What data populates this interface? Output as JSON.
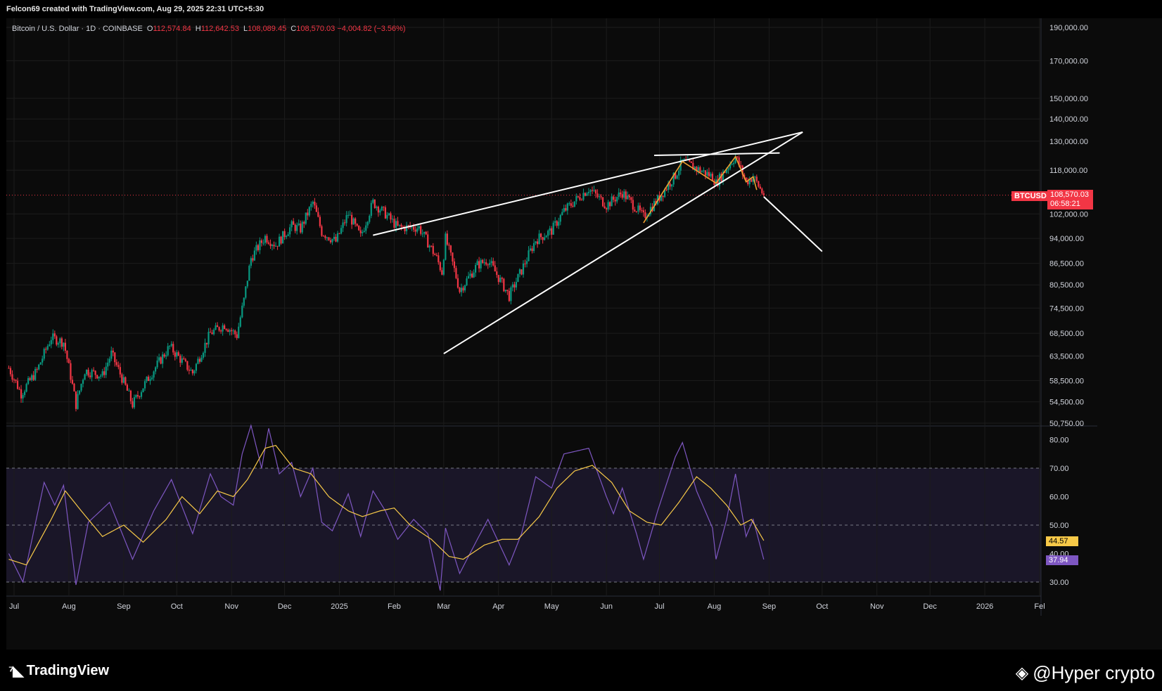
{
  "header": {
    "credit": "Felcon69 created with TradingView.com, Aug 29, 2025 22:31 UTC+5:30"
  },
  "legend": {
    "symbol": "Bitcoin / U.S. Dollar · 1D · COINBASE",
    "o_label": "O",
    "o_value": "112,574.84",
    "h_label": "H",
    "h_value": "112,642.53",
    "l_label": "L",
    "l_value": "108,089.45",
    "c_label": "C",
    "c_value": "108,570.03",
    "change": "−4,004.82 (−3.56%)"
  },
  "price_marker": {
    "ticker": "BTCUSD",
    "price": "108,570.03",
    "countdown": "06:58:21",
    "color": "#f23645"
  },
  "rsi_markers": {
    "ma_value": "44.57",
    "ma_color": "#f7c948",
    "rsi_value": "37.94",
    "rsi_color": "#7e57c2"
  },
  "footer": {
    "brand": "TradingView",
    "watermark": "@Hyper crypto"
  },
  "colors": {
    "up": "#089981",
    "down": "#f23645",
    "trendline": "#ffffff",
    "pattern": "#f0a030",
    "rsi": "#7e57c2",
    "rsi_ma": "#f7c948",
    "rsi_band": "#1a1628"
  },
  "chart_data": [
    {
      "type": "candlestick",
      "title": "Bitcoin / U.S. Dollar · 1D · COINBASE",
      "y_scale": "log",
      "y_ticks": [
        "190,000.00",
        "170,000.00",
        "150,000.00",
        "140,000.00",
        "130,000.00",
        "118,000.00",
        "102,000.00",
        "94,000.00",
        "86,500.00",
        "80,500.00",
        "74,500.00",
        "68,500.00",
        "63,500.00",
        "58,500.00",
        "54,500.00",
        "50,750.00"
      ],
      "y_tick_values": [
        190000,
        170000,
        150000,
        140000,
        130000,
        118000,
        102000,
        94000,
        86500,
        80500,
        74500,
        68500,
        63500,
        58500,
        54500,
        50750
      ],
      "x_ticks": [
        "Jul",
        "Aug",
        "Sep",
        "Oct",
        "Nov",
        "Dec",
        "2025",
        "Feb",
        "Mar",
        "Apr",
        "May",
        "Jun",
        "Jul",
        "Aug",
        "Sep",
        "Oct",
        "Nov",
        "Dec",
        "2026",
        "Fel"
      ],
      "x_tick_dates": [
        "2024-07-01",
        "2024-08-01",
        "2024-09-01",
        "2024-10-01",
        "2024-11-01",
        "2024-12-01",
        "2025-01-01",
        "2025-02-01",
        "2025-03-01",
        "2025-04-01",
        "2025-05-01",
        "2025-06-01",
        "2025-07-01",
        "2025-08-01",
        "2025-09-01",
        "2025-10-01",
        "2025-11-01",
        "2025-12-01",
        "2026-01-01",
        "2026-02-01"
      ],
      "last_close": 108570.03,
      "close_path": [
        {
          "date": "2024-06-28",
          "close": 61000
        },
        {
          "date": "2024-07-05",
          "close": 56000
        },
        {
          "date": "2024-07-14",
          "close": 60500
        },
        {
          "date": "2024-07-22",
          "close": 67500
        },
        {
          "date": "2024-07-29",
          "close": 66500
        },
        {
          "date": "2024-08-05",
          "close": 54000
        },
        {
          "date": "2024-08-10",
          "close": 60500
        },
        {
          "date": "2024-08-20",
          "close": 59500
        },
        {
          "date": "2024-08-25",
          "close": 64000
        },
        {
          "date": "2024-09-06",
          "close": 54000
        },
        {
          "date": "2024-09-15",
          "close": 59000
        },
        {
          "date": "2024-09-27",
          "close": 65500
        },
        {
          "date": "2024-10-05",
          "close": 62000
        },
        {
          "date": "2024-10-10",
          "close": 60000
        },
        {
          "date": "2024-10-20",
          "close": 68500
        },
        {
          "date": "2024-10-28",
          "close": 70500
        },
        {
          "date": "2024-11-04",
          "close": 68000
        },
        {
          "date": "2024-11-08",
          "close": 76500
        },
        {
          "date": "2024-11-12",
          "close": 88000
        },
        {
          "date": "2024-11-20",
          "close": 94500
        },
        {
          "date": "2024-11-26",
          "close": 92000
        },
        {
          "date": "2024-12-05",
          "close": 98000
        },
        {
          "date": "2024-12-10",
          "close": 97000
        },
        {
          "date": "2024-12-17",
          "close": 106000
        },
        {
          "date": "2024-12-22",
          "close": 96000
        },
        {
          "date": "2024-12-30",
          "close": 93000
        },
        {
          "date": "2025-01-06",
          "close": 102000
        },
        {
          "date": "2025-01-13",
          "close": 94500
        },
        {
          "date": "2025-01-20",
          "close": 106000
        },
        {
          "date": "2025-01-27",
          "close": 102000
        },
        {
          "date": "2025-02-03",
          "close": 97500
        },
        {
          "date": "2025-02-15",
          "close": 97500
        },
        {
          "date": "2025-02-25",
          "close": 88000
        },
        {
          "date": "2025-02-28",
          "close": 84000
        },
        {
          "date": "2025-03-02",
          "close": 94000
        },
        {
          "date": "2025-03-10",
          "close": 79000
        },
        {
          "date": "2025-03-20",
          "close": 86000
        },
        {
          "date": "2025-03-26",
          "close": 87500
        },
        {
          "date": "2025-04-07",
          "close": 77500
        },
        {
          "date": "2025-04-14",
          "close": 84500
        },
        {
          "date": "2025-04-22",
          "close": 93500
        },
        {
          "date": "2025-05-01",
          "close": 96500
        },
        {
          "date": "2025-05-08",
          "close": 103000
        },
        {
          "date": "2025-05-22",
          "close": 111000
        },
        {
          "date": "2025-06-01",
          "close": 105000
        },
        {
          "date": "2025-06-10",
          "close": 109500
        },
        {
          "date": "2025-06-22",
          "close": 101000
        },
        {
          "date": "2025-06-30",
          "close": 107000
        },
        {
          "date": "2025-07-10",
          "close": 116000
        },
        {
          "date": "2025-07-14",
          "close": 121500
        },
        {
          "date": "2025-07-31",
          "close": 115500
        },
        {
          "date": "2025-08-02",
          "close": 113000
        },
        {
          "date": "2025-08-13",
          "close": 123500
        },
        {
          "date": "2025-08-19",
          "close": 113500
        },
        {
          "date": "2025-08-23",
          "close": 115500
        },
        {
          "date": "2025-08-29",
          "close": 108570
        }
      ],
      "trendlines": [
        {
          "from": {
            "date": "2025-01-20",
            "price": 95000
          },
          "to": {
            "date": "2025-09-20",
            "price": 134000
          }
        },
        {
          "from": {
            "date": "2025-03-01",
            "price": 64000
          },
          "to": {
            "date": "2025-09-20",
            "price": 134000
          }
        },
        {
          "from": {
            "date": "2025-06-28",
            "price": 124000
          },
          "to": {
            "date": "2025-09-07",
            "price": 125000
          }
        },
        {
          "from": {
            "date": "2025-08-29",
            "price": 108000
          },
          "to": {
            "date": "2025-10-01",
            "price": 90000
          }
        }
      ],
      "pattern_path": [
        {
          "date": "2025-06-22",
          "price": 99000
        },
        {
          "date": "2025-07-14",
          "price": 121500
        },
        {
          "date": "2025-08-02",
          "price": 113000
        },
        {
          "date": "2025-08-13",
          "price": 123500
        },
        {
          "date": "2025-08-19",
          "price": 113500
        },
        {
          "date": "2025-08-23",
          "price": 115500
        },
        {
          "date": "2025-08-25",
          "price": 110500
        }
      ]
    },
    {
      "type": "line",
      "title": "",
      "y_ticks": [
        "80.00",
        "70.00",
        "60.00",
        "50.00",
        "40.00",
        "30.00"
      ],
      "y_tick_values": [
        80,
        70,
        60,
        50,
        40,
        30
      ],
      "bands": [
        70,
        50,
        30
      ],
      "series": [
        {
          "values": [
            {
              "date": "2024-06-28",
              "v": 40
            },
            {
              "date": "2024-07-06",
              "v": 30
            },
            {
              "date": "2024-07-18",
              "v": 65
            },
            {
              "date": "2024-07-24",
              "v": 57
            },
            {
              "date": "2024-07-29",
              "v": 64
            },
            {
              "date": "2024-08-05",
              "v": 29
            },
            {
              "date": "2024-08-12",
              "v": 51
            },
            {
              "date": "2024-08-24",
              "v": 58
            },
            {
              "date": "2024-09-06",
              "v": 38
            },
            {
              "date": "2024-09-18",
              "v": 55
            },
            {
              "date": "2024-09-28",
              "v": 66
            },
            {
              "date": "2024-10-10",
              "v": 47
            },
            {
              "date": "2024-10-20",
              "v": 68
            },
            {
              "date": "2024-10-26",
              "v": 60
            },
            {
              "date": "2024-11-02",
              "v": 57
            },
            {
              "date": "2024-11-07",
              "v": 75
            },
            {
              "date": "2024-11-12",
              "v": 85
            },
            {
              "date": "2024-11-18",
              "v": 70
            },
            {
              "date": "2024-11-22",
              "v": 84
            },
            {
              "date": "2024-11-28",
              "v": 68
            },
            {
              "date": "2024-12-05",
              "v": 72
            },
            {
              "date": "2024-12-10",
              "v": 60
            },
            {
              "date": "2024-12-17",
              "v": 70
            },
            {
              "date": "2024-12-22",
              "v": 51
            },
            {
              "date": "2024-12-28",
              "v": 48
            },
            {
              "date": "2025-01-06",
              "v": 61
            },
            {
              "date": "2025-01-13",
              "v": 46
            },
            {
              "date": "2025-01-20",
              "v": 62
            },
            {
              "date": "2025-01-27",
              "v": 55
            },
            {
              "date": "2025-02-03",
              "v": 45
            },
            {
              "date": "2025-02-12",
              "v": 52
            },
            {
              "date": "2025-02-20",
              "v": 47
            },
            {
              "date": "2025-02-27",
              "v": 27
            },
            {
              "date": "2025-03-02",
              "v": 49
            },
            {
              "date": "2025-03-10",
              "v": 33
            },
            {
              "date": "2025-03-20",
              "v": 45
            },
            {
              "date": "2025-03-26",
              "v": 52
            },
            {
              "date": "2025-04-07",
              "v": 36
            },
            {
              "date": "2025-04-14",
              "v": 47
            },
            {
              "date": "2025-04-22",
              "v": 67
            },
            {
              "date": "2025-05-01",
              "v": 63
            },
            {
              "date": "2025-05-08",
              "v": 75
            },
            {
              "date": "2025-05-22",
              "v": 77
            },
            {
              "date": "2025-06-01",
              "v": 60
            },
            {
              "date": "2025-06-05",
              "v": 54
            },
            {
              "date": "2025-06-10",
              "v": 63
            },
            {
              "date": "2025-06-18",
              "v": 47
            },
            {
              "date": "2025-06-22",
              "v": 38
            },
            {
              "date": "2025-06-30",
              "v": 55
            },
            {
              "date": "2025-07-10",
              "v": 74
            },
            {
              "date": "2025-07-14",
              "v": 79
            },
            {
              "date": "2025-07-22",
              "v": 62
            },
            {
              "date": "2025-07-31",
              "v": 49
            },
            {
              "date": "2025-08-02",
              "v": 38
            },
            {
              "date": "2025-08-08",
              "v": 52
            },
            {
              "date": "2025-08-13",
              "v": 68
            },
            {
              "date": "2025-08-17",
              "v": 53
            },
            {
              "date": "2025-08-19",
              "v": 46
            },
            {
              "date": "2025-08-23",
              "v": 52
            },
            {
              "date": "2025-08-29",
              "v": 37.94
            }
          ]
        },
        {
          "values": [
            {
              "date": "2024-06-28",
              "v": 38
            },
            {
              "date": "2024-07-08",
              "v": 36
            },
            {
              "date": "2024-07-22",
              "v": 52
            },
            {
              "date": "2024-07-30",
              "v": 62
            },
            {
              "date": "2024-08-08",
              "v": 55
            },
            {
              "date": "2024-08-20",
              "v": 46
            },
            {
              "date": "2024-09-01",
              "v": 50
            },
            {
              "date": "2024-09-12",
              "v": 44
            },
            {
              "date": "2024-09-25",
              "v": 52
            },
            {
              "date": "2024-10-04",
              "v": 60
            },
            {
              "date": "2024-10-14",
              "v": 54
            },
            {
              "date": "2024-10-24",
              "v": 62
            },
            {
              "date": "2024-11-02",
              "v": 60
            },
            {
              "date": "2024-11-10",
              "v": 66
            },
            {
              "date": "2024-11-20",
              "v": 77
            },
            {
              "date": "2024-11-26",
              "v": 78
            },
            {
              "date": "2024-12-06",
              "v": 70
            },
            {
              "date": "2024-12-16",
              "v": 68
            },
            {
              "date": "2024-12-26",
              "v": 60
            },
            {
              "date": "2025-01-06",
              "v": 55
            },
            {
              "date": "2025-01-14",
              "v": 53
            },
            {
              "date": "2025-01-24",
              "v": 55
            },
            {
              "date": "2025-02-01",
              "v": 56
            },
            {
              "date": "2025-02-10",
              "v": 50
            },
            {
              "date": "2025-02-22",
              "v": 45
            },
            {
              "date": "2025-03-04",
              "v": 39
            },
            {
              "date": "2025-03-12",
              "v": 38
            },
            {
              "date": "2025-03-24",
              "v": 43
            },
            {
              "date": "2025-04-03",
              "v": 45
            },
            {
              "date": "2025-04-12",
              "v": 45
            },
            {
              "date": "2025-04-24",
              "v": 53
            },
            {
              "date": "2025-05-04",
              "v": 63
            },
            {
              "date": "2025-05-14",
              "v": 69
            },
            {
              "date": "2025-05-24",
              "v": 71
            },
            {
              "date": "2025-06-04",
              "v": 65
            },
            {
              "date": "2025-06-14",
              "v": 55
            },
            {
              "date": "2025-06-24",
              "v": 51
            },
            {
              "date": "2025-07-02",
              "v": 50
            },
            {
              "date": "2025-07-12",
              "v": 58
            },
            {
              "date": "2025-07-22",
              "v": 67
            },
            {
              "date": "2025-07-30",
              "v": 63
            },
            {
              "date": "2025-08-08",
              "v": 57
            },
            {
              "date": "2025-08-16",
              "v": 50
            },
            {
              "date": "2025-08-22",
              "v": 52
            },
            {
              "date": "2025-08-29",
              "v": 44.57
            }
          ]
        }
      ]
    }
  ]
}
